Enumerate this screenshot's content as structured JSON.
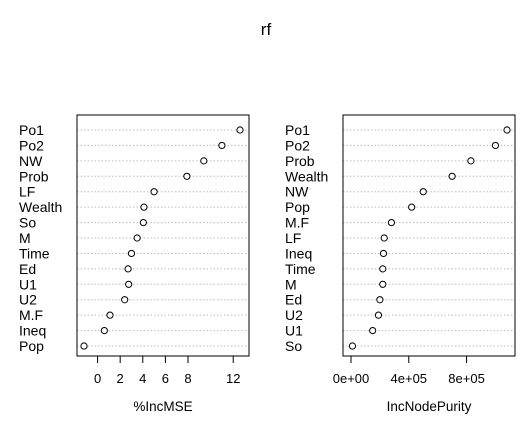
{
  "title": "rf",
  "colors": {
    "background": "#ffffff",
    "ink": "#000000",
    "guide": "#bebebe"
  },
  "chart_data": [
    {
      "type": "scatter",
      "subtype": "dotchart",
      "xlabel": "%IncMSE",
      "xlim": [
        -1.2,
        12.6
      ],
      "xticks": [
        0,
        2,
        4,
        6,
        8,
        12
      ],
      "xtick_labels": [
        "0",
        "2",
        "4",
        "6",
        "8",
        "12"
      ],
      "categories": [
        "Po1",
        "Po2",
        "NW",
        "Prob",
        "LF",
        "Wealth",
        "So",
        "M",
        "Time",
        "Ed",
        "U1",
        "U2",
        "M.F",
        "Ineq",
        "Pop"
      ],
      "values": [
        12.6,
        11.0,
        9.4,
        7.9,
        5.0,
        4.1,
        4.05,
        3.5,
        3.0,
        2.7,
        2.75,
        2.4,
        1.1,
        0.6,
        -1.2
      ],
      "grid": "dotted horizontal guides"
    },
    {
      "type": "scatter",
      "subtype": "dotchart",
      "xlabel": "IncNodePurity",
      "xlim": [
        0,
        1080000
      ],
      "xticks": [
        0,
        400000,
        800000
      ],
      "xtick_labels": [
        "0e+00",
        "4e+05",
        "8e+05"
      ],
      "categories": [
        "Po1",
        "Po2",
        "Prob",
        "Wealth",
        "NW",
        "Pop",
        "M.F",
        "LF",
        "Ineq",
        "Time",
        "M",
        "Ed",
        "U2",
        "U1",
        "So"
      ],
      "values": [
        1080000,
        1000000,
        830000,
        700000,
        500000,
        420000,
        280000,
        230000,
        225000,
        220000,
        220000,
        200000,
        190000,
        150000,
        10000
      ],
      "grid": "dotted horizontal guides"
    }
  ]
}
